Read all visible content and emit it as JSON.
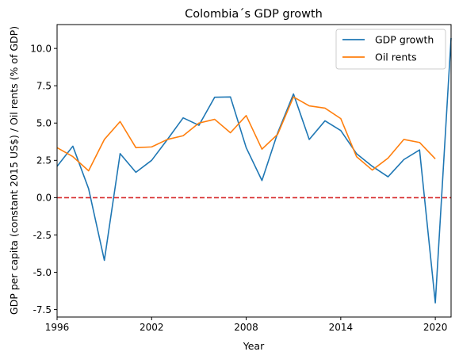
{
  "chart_data": {
    "type": "line",
    "title": "Colombia´s GDP growth",
    "xlabel": "Year",
    "ylabel": "GDP per capita (constant 2015 US$) / Oil rents (% of GDP)",
    "xlim": [
      1996,
      2021
    ],
    "ylim": [
      -8.0,
      11.6
    ],
    "xticks": [
      1996,
      2002,
      2008,
      2014,
      2020
    ],
    "yticks": [
      -7.5,
      -5.0,
      -2.5,
      0.0,
      2.5,
      5.0,
      7.5,
      10.0
    ],
    "grid": false,
    "legend_position": "top-right",
    "reference_line": {
      "y": 0.0,
      "color": "#d62728",
      "style": "dashed"
    },
    "series": [
      {
        "name": "GDP growth",
        "color": "#1f77b4",
        "x": [
          1996,
          1997,
          1998,
          1999,
          2000,
          2001,
          2002,
          2003,
          2004,
          2005,
          2006,
          2007,
          2008,
          2009,
          2010,
          2011,
          2012,
          2013,
          2014,
          2015,
          2016,
          2017,
          2018,
          2019,
          2020,
          2021
        ],
        "values": [
          2.1,
          3.45,
          0.6,
          -4.2,
          2.95,
          1.7,
          2.5,
          3.9,
          5.35,
          4.85,
          6.73,
          6.75,
          3.35,
          1.15,
          4.35,
          6.95,
          3.9,
          5.15,
          4.5,
          2.95,
          2.1,
          1.4,
          2.55,
          3.2,
          -7.05,
          10.7
        ]
      },
      {
        "name": "Oil rents",
        "color": "#ff7f0e",
        "x": [
          1996,
          1997,
          1998,
          1999,
          2000,
          2001,
          2002,
          2003,
          2004,
          2005,
          2006,
          2007,
          2008,
          2009,
          2010,
          2011,
          2012,
          2013,
          2014,
          2015,
          2016,
          2017,
          2018,
          2019,
          2020
        ],
        "values": [
          3.35,
          2.75,
          1.8,
          3.9,
          5.1,
          3.35,
          3.4,
          3.9,
          4.15,
          5.0,
          5.25,
          4.35,
          5.5,
          3.25,
          4.25,
          6.75,
          6.15,
          6.0,
          5.3,
          2.75,
          1.85,
          2.65,
          3.9,
          3.7,
          2.6
        ]
      }
    ]
  }
}
